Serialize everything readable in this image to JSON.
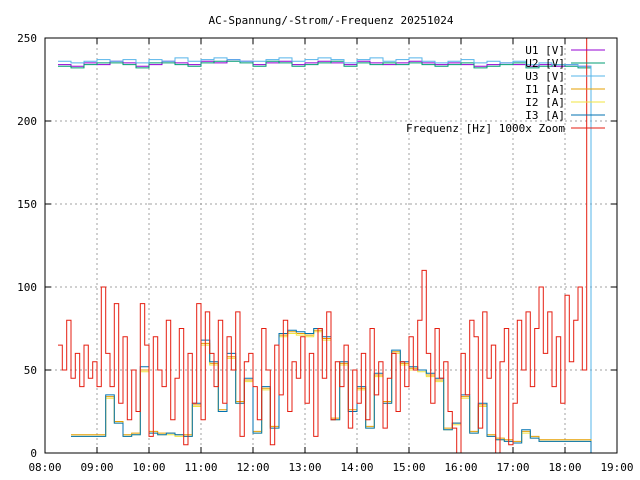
{
  "chart_data": {
    "type": "line",
    "title": "AC-Spannung/-Strom/-Frequenz 20251024",
    "xlabel": "",
    "ylabel": "",
    "xlim": [
      "08:00",
      "19:00"
    ],
    "ylim": [
      0,
      250
    ],
    "grid": true,
    "legend_position": "top-right",
    "x_ticks": [
      "08:00",
      "09:00",
      "10:00",
      "11:00",
      "12:00",
      "13:00",
      "14:00",
      "15:00",
      "16:00",
      "17:00",
      "18:00",
      "19:00"
    ],
    "y_ticks": [
      "0",
      "50",
      "100",
      "150",
      "200",
      "250"
    ],
    "series": [
      {
        "name": "U1 [V]",
        "color": "#9400d3",
        "start": "08:15",
        "step_min": 15,
        "values": [
          234,
          233,
          235,
          234,
          236,
          235,
          233,
          234,
          236,
          235,
          234,
          236,
          235,
          237,
          236,
          234,
          235,
          236,
          234,
          235,
          236,
          235,
          234,
          236,
          235,
          234,
          235,
          236,
          235,
          234,
          235,
          234,
          233,
          234,
          235,
          234,
          233,
          234,
          233,
          234,
          233,
          0
        ]
      },
      {
        "name": "U2 [V]",
        "color": "#009e73",
        "start": "08:15",
        "step_min": 15,
        "values": [
          233,
          232,
          234,
          235,
          235,
          234,
          232,
          235,
          235,
          234,
          233,
          235,
          236,
          236,
          235,
          233,
          236,
          235,
          233,
          234,
          235,
          236,
          233,
          235,
          234,
          235,
          234,
          235,
          234,
          233,
          234,
          235,
          232,
          233,
          234,
          235,
          232,
          233,
          234,
          233,
          232,
          0
        ]
      },
      {
        "name": "U3 [V]",
        "color": "#56b4e9",
        "start": "08:15",
        "step_min": 15,
        "values": [
          236,
          235,
          236,
          237,
          236,
          237,
          235,
          237,
          236,
          238,
          236,
          237,
          238,
          237,
          236,
          236,
          237,
          238,
          236,
          237,
          238,
          237,
          235,
          237,
          238,
          236,
          237,
          238,
          236,
          235,
          236,
          237,
          235,
          236,
          235,
          236,
          234,
          235,
          234,
          234,
          233,
          0
        ]
      },
      {
        "name": "I1 [A]",
        "color": "#e69f00",
        "start": "08:30",
        "step_min": 10,
        "values": [
          11,
          11,
          11,
          11,
          34,
          19,
          11,
          12,
          50,
          13,
          12,
          12,
          11,
          11,
          29,
          66,
          54,
          26,
          58,
          31,
          44,
          13,
          39,
          16,
          71,
          73,
          72,
          71,
          74,
          69,
          21,
          54,
          26,
          39,
          16,
          47,
          31,
          61,
          54,
          51,
          50,
          47,
          44,
          15,
          18,
          34,
          13,
          29,
          11,
          9,
          8,
          7,
          13,
          10,
          8,
          8,
          8,
          8,
          8,
          8,
          0
        ]
      },
      {
        "name": "I2 [A]",
        "color": "#f0e442",
        "start": "08:30",
        "step_min": 10,
        "values": [
          10,
          10,
          10,
          10,
          33,
          18,
          10,
          11,
          49,
          12,
          11,
          11,
          10,
          10,
          28,
          65,
          53,
          25,
          57,
          30,
          43,
          12,
          38,
          15,
          70,
          72,
          71,
          70,
          73,
          68,
          20,
          53,
          25,
          38,
          15,
          46,
          30,
          60,
          53,
          50,
          49,
          46,
          43,
          14,
          17,
          33,
          12,
          28,
          10,
          8,
          7,
          6,
          12,
          9,
          7,
          7,
          7,
          7,
          7,
          7,
          0
        ]
      },
      {
        "name": "I3 [A]",
        "color": "#0072b2",
        "start": "08:30",
        "step_min": 10,
        "values": [
          10,
          10,
          10,
          10,
          35,
          18,
          10,
          11,
          52,
          12,
          11,
          12,
          11,
          10,
          30,
          68,
          55,
          25,
          60,
          30,
          45,
          12,
          40,
          15,
          72,
          74,
          73,
          72,
          75,
          70,
          20,
          55,
          25,
          40,
          15,
          48,
          30,
          62,
          55,
          52,
          50,
          48,
          45,
          14,
          18,
          35,
          12,
          30,
          10,
          8,
          7,
          6,
          14,
          9,
          7,
          7,
          7,
          7,
          7,
          7,
          0
        ]
      },
      {
        "name": "Frequenz [Hz] 1000x Zoom",
        "color": "#e51e10",
        "start": "08:15",
        "step_min": 5,
        "values": [
          65,
          50,
          80,
          45,
          60,
          40,
          65,
          45,
          55,
          40,
          100,
          60,
          40,
          90,
          30,
          70,
          20,
          50,
          25,
          90,
          65,
          10,
          70,
          50,
          40,
          80,
          20,
          45,
          75,
          5,
          60,
          30,
          90,
          20,
          85,
          60,
          40,
          80,
          30,
          70,
          50,
          85,
          10,
          55,
          60,
          40,
          20,
          75,
          50,
          5,
          65,
          35,
          80,
          25,
          55,
          45,
          70,
          30,
          60,
          10,
          75,
          45,
          85,
          20,
          55,
          40,
          65,
          15,
          50,
          30,
          60,
          20,
          75,
          35,
          55,
          15,
          45,
          60,
          25,
          55,
          40,
          70,
          50,
          80,
          110,
          60,
          30,
          75,
          45,
          55,
          25,
          15,
          0,
          60,
          35,
          80,
          70,
          15,
          85,
          45,
          65,
          0,
          55,
          75,
          5,
          30,
          80,
          50,
          85,
          40,
          75,
          100,
          60,
          85,
          40,
          70,
          30,
          95,
          55,
          80,
          100,
          50,
          250
        ]
      }
    ]
  }
}
